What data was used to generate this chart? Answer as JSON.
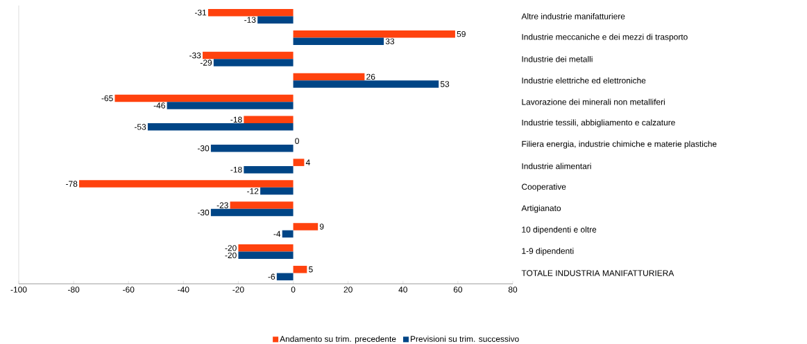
{
  "chart_data": {
    "type": "bar",
    "orientation": "horizontal",
    "categories": [
      "Altre industrie manifatturiere",
      "Industrie meccaniche e dei mezzi di trasporto",
      "Industrie dei metalli",
      "Industrie elettriche ed elettroniche",
      "Lavorazione dei minerali non metalliferi",
      "Industrie tessili, abbigliamento e calzature",
      "Filiera energia, industrie chimiche e materie plastiche",
      "Industrie alimentari",
      "Cooperative",
      "Artigianato",
      "10 dipendenti e oltre",
      "1-9 dipendenti",
      "TOTALE INDUSTRIA MANIFATTURIERA"
    ],
    "series": [
      {
        "name": "Andamento su trim. precedente",
        "color": "#ff420e",
        "values": [
          -31,
          59,
          -33,
          26,
          -65,
          -18,
          0,
          4,
          -78,
          -23,
          9,
          -20,
          5
        ]
      },
      {
        "name": "Previsioni su trim. successivo",
        "color": "#004586",
        "values": [
          -13,
          33,
          -29,
          53,
          -46,
          -53,
          -30,
          -18,
          -12,
          -30,
          -4,
          -20,
          -6
        ]
      }
    ],
    "xlim": [
      -100,
      80
    ],
    "xticks": [
      -100,
      -80,
      -60,
      -40,
      -20,
      0,
      20,
      40,
      60,
      80
    ],
    "data_labels": true,
    "legend": "bottom",
    "grid": false
  }
}
